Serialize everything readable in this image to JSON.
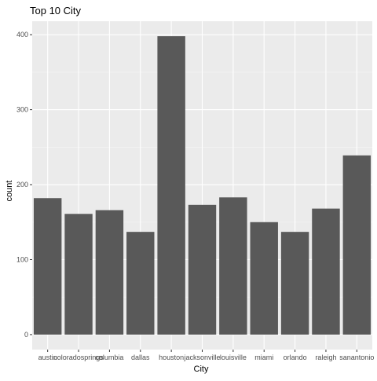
{
  "chart_data": {
    "type": "bar",
    "title": "Top 10 City",
    "xlabel": "City",
    "ylabel": "count",
    "categories": [
      "austin",
      "coloradosprings",
      "columbia",
      "dallas",
      "houston",
      "jacksonville",
      "louisville",
      "miami",
      "orlando",
      "raleigh",
      "sanantonio"
    ],
    "values": [
      182,
      161,
      166,
      137,
      398,
      173,
      183,
      150,
      137,
      168,
      239
    ],
    "yticks": [
      0,
      100,
      200,
      300,
      400
    ],
    "ylim": [
      -20,
      418
    ],
    "grid": true,
    "legend": "none",
    "colors": {
      "bar": "#595959",
      "panel": "#ebebeb",
      "grid_major": "#ffffff",
      "grid_minor": "#f5f5f5"
    }
  }
}
